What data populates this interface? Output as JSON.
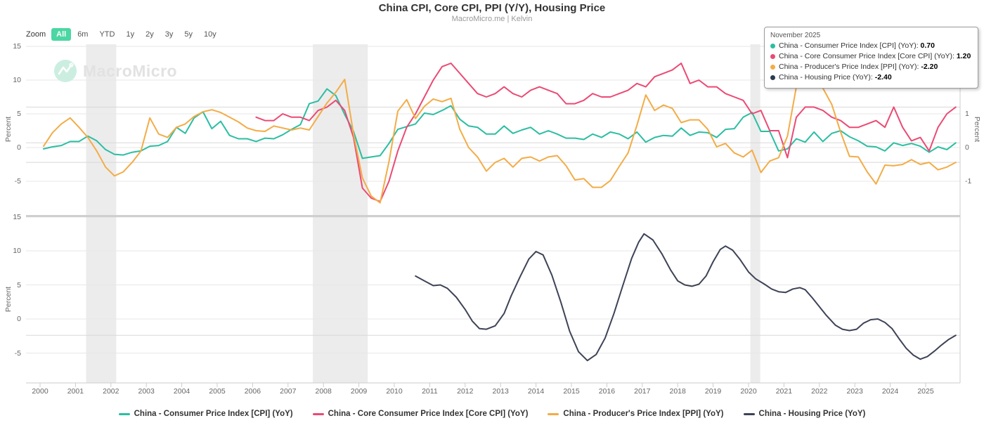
{
  "title": "China CPI, Core CPI, PPI (Y/Y), Housing Price",
  "subtitle": "MacroMicro.me | Kelvin",
  "watermark": "MacroMicro",
  "toolbar": {
    "zoom_label": "Zoom",
    "buttons": [
      "All",
      "6m",
      "YTD",
      "1y",
      "2y",
      "3y",
      "5y",
      "10y"
    ],
    "active": "All"
  },
  "axes": {
    "percent_label": "Percent"
  },
  "colors": {
    "cpi": "#2BBEA2",
    "core_cpi": "#EB4A74",
    "ppi": "#F3AC46",
    "housing": "#3D4356",
    "active_button": "#4CD6A4",
    "recession_band": "#ececec",
    "gridline": "#e7e7e7",
    "latest_value_line": "#d8d8d8"
  },
  "tooltip": {
    "date": "November 2025",
    "rows": [
      {
        "label": "China - Consumer Price Index [CPI] (YoY)",
        "value": "0.70",
        "color": "#2BBEA2"
      },
      {
        "label": "China - Core Consumer Price Index [Core CPI] (YoY)",
        "value": "1.20",
        "color": "#EB4A74"
      },
      {
        "label": "China - Producer's Price Index [PPI] (YoY)",
        "value": "-2.20",
        "color": "#F3AC46"
      },
      {
        "label": "China - Housing Price (YoY)",
        "value": "-2.40",
        "color": "#2e3a4e"
      }
    ]
  },
  "legend": [
    {
      "label": "China - Consumer Price Index [CPI] (YoY)",
      "color": "#2BBEA2"
    },
    {
      "label": "China - Core Consumer Price Index [Core CPI] (YoY)",
      "color": "#EB4A74"
    },
    {
      "label": "China - Producer's Price Index [PPI] (YoY)",
      "color": "#F3AC46"
    },
    {
      "label": "China - Housing Price (YoY)",
      "color": "#3D4356"
    }
  ],
  "chart_data": [
    {
      "type": "line",
      "panel": "top",
      "ylabel": "Percent",
      "ylabel_right": "Percent",
      "y_left": {
        "ticks": [
          15,
          10,
          5,
          0,
          -5
        ],
        "range": [
          -9.4,
          15
        ]
      },
      "y_right": {
        "ticks": [
          3,
          2,
          1,
          0,
          -1
        ],
        "range": [
          -1.88,
          3
        ]
      },
      "x_range": [
        1999.6,
        2026.0
      ],
      "bands": [
        {
          "from": 2001.3,
          "to": 2002.15
        },
        {
          "from": 2007.7,
          "to": 2009.25
        },
        {
          "from": 2020.05,
          "to": 2020.33
        }
      ],
      "latest_value_lines": [
        {
          "axis": "left",
          "value": 0.7
        },
        {
          "axis": "right",
          "value": 1.2
        },
        {
          "axis": "left",
          "value": -2.2
        }
      ],
      "series": [
        {
          "id": "cpi-line",
          "name": "China - Consumer Price Index [CPI] (YoY)",
          "color": "#2BBEA2",
          "axis": "left",
          "x_start": 2000.1,
          "x_step": 0.25,
          "y": [
            -0.2,
            0.1,
            0.3,
            0.9,
            0.9,
            1.7,
            1.0,
            -0.3,
            -1.0,
            -1.1,
            -0.7,
            -0.5,
            0.2,
            0.3,
            0.9,
            3.0,
            2.1,
            4.4,
            5.3,
            2.8,
            3.9,
            1.8,
            1.3,
            1.3,
            0.9,
            1.4,
            1.3,
            1.9,
            2.7,
            3.4,
            6.5,
            6.9,
            8.7,
            7.7,
            4.9,
            2.4,
            -1.6,
            -1.4,
            -1.2,
            0.6,
            2.7,
            3.1,
            3.5,
            5.1,
            4.9,
            5.5,
            6.2,
            4.2,
            3.2,
            3.0,
            2.0,
            2.0,
            3.2,
            2.1,
            2.6,
            3.0,
            2.0,
            2.5,
            2.0,
            1.4,
            1.4,
            1.2,
            2.0,
            1.5,
            2.3,
            2.0,
            1.3,
            2.3,
            0.8,
            1.5,
            1.8,
            1.7,
            2.9,
            1.8,
            2.3,
            2.2,
            1.5,
            2.7,
            2.8,
            4.5,
            5.2,
            2.4,
            2.4,
            -0.5,
            -0.2,
            1.3,
            0.8,
            2.3,
            0.9,
            2.1,
            2.5,
            1.6,
            1.0,
            0.2,
            0.1,
            -0.5,
            0.7,
            0.3,
            0.6,
            0.2,
            -0.7,
            0.1,
            -0.3,
            0.7
          ]
        },
        {
          "id": "core-cpi-line",
          "name": "China - Core Consumer Price Index [Core CPI] (YoY)",
          "color": "#EB4A74",
          "axis": "right",
          "x_start": 2006.1,
          "x_step": 0.25,
          "y": [
            0.9,
            0.8,
            0.8,
            1.0,
            0.9,
            0.9,
            0.8,
            1.1,
            1.2,
            1.4,
            1.1,
            0.3,
            -1.2,
            -1.5,
            -1.6,
            -1.0,
            -0.1,
            0.6,
            1.0,
            1.5,
            2.0,
            2.4,
            2.5,
            2.2,
            1.9,
            1.6,
            1.5,
            1.6,
            1.8,
            1.6,
            1.5,
            1.7,
            1.8,
            1.7,
            1.6,
            1.3,
            1.3,
            1.4,
            1.6,
            1.5,
            1.5,
            1.6,
            1.7,
            1.9,
            1.8,
            2.1,
            2.2,
            2.3,
            2.5,
            1.9,
            2.0,
            1.8,
            1.8,
            1.6,
            1.5,
            1.4,
            1.0,
            1.1,
            0.5,
            0.5,
            -0.3,
            0.9,
            1.2,
            1.2,
            1.1,
            0.9,
            0.8,
            0.6,
            0.6,
            0.7,
            0.8,
            0.6,
            1.2,
            0.6,
            0.2,
            0.3,
            -0.1,
            0.6,
            1.0,
            1.2
          ]
        },
        {
          "id": "ppi-line",
          "name": "China - Producer's Price Index [PPI] (YoY)",
          "color": "#F3AC46",
          "axis": "left",
          "x_start": 2000.1,
          "x_step": 0.25,
          "y": [
            0.2,
            2.2,
            3.5,
            4.4,
            3.0,
            1.5,
            -0.5,
            -2.9,
            -4.2,
            -3.6,
            -2.2,
            -0.5,
            4.4,
            2.0,
            1.5,
            3.0,
            3.5,
            4.6,
            5.3,
            5.6,
            5.2,
            4.5,
            3.8,
            2.9,
            2.5,
            2.4,
            3.2,
            2.9,
            2.6,
            2.9,
            2.6,
            4.6,
            6.6,
            8.2,
            10.1,
            2.0,
            -4.5,
            -7.2,
            -8.2,
            -2.1,
            5.4,
            7.1,
            4.3,
            6.1,
            7.2,
            6.8,
            7.3,
            2.7,
            0.0,
            -1.4,
            -3.5,
            -2.2,
            -1.6,
            -2.9,
            -1.6,
            -1.4,
            -2.0,
            -1.4,
            -1.2,
            -2.7,
            -4.8,
            -4.6,
            -5.9,
            -5.9,
            -4.9,
            -2.8,
            -0.8,
            3.3,
            7.8,
            5.5,
            6.3,
            5.8,
            3.7,
            4.1,
            4.1,
            2.7,
            0.1,
            0.6,
            -0.8,
            -1.4,
            -0.4,
            -3.7,
            -2.0,
            -1.5,
            1.7,
            9.0,
            9.5,
            13.0,
            8.8,
            6.4,
            2.3,
            -1.3,
            -1.4,
            -3.6,
            -5.4,
            -2.6,
            -2.7,
            -2.5,
            -1.8,
            -2.5,
            -2.2,
            -3.3,
            -2.9,
            -2.2
          ]
        }
      ]
    },
    {
      "type": "line",
      "panel": "bottom",
      "ylabel": "Percent",
      "y_left": {
        "ticks": [
          15,
          10,
          5,
          0,
          -5
        ],
        "range": [
          -9.4,
          15
        ]
      },
      "x_range": [
        1999.6,
        2026.0
      ],
      "x_axis": {
        "ticks": [
          2000,
          2001,
          2002,
          2003,
          2004,
          2005,
          2006,
          2007,
          2008,
          2009,
          2010,
          2011,
          2012,
          2013,
          2014,
          2015,
          2016,
          2017,
          2018,
          2019,
          2020,
          2021,
          2022,
          2023,
          2024,
          2025
        ]
      },
      "latest_value_lines": [
        {
          "axis": "left",
          "value": -2.4
        }
      ],
      "series": [
        {
          "id": "housing-price-line",
          "name": "China - Housing Price (YoY)",
          "color": "#3D4356",
          "axis": "left",
          "x": [
            2010.6,
            2010.85,
            2011.1,
            2011.3,
            2011.5,
            2011.75,
            2012.0,
            2012.2,
            2012.4,
            2012.6,
            2012.85,
            2013.1,
            2013.3,
            2013.55,
            2013.8,
            2014.0,
            2014.2,
            2014.45,
            2014.7,
            2014.95,
            2015.2,
            2015.45,
            2015.7,
            2015.95,
            2016.2,
            2016.45,
            2016.7,
            2016.9,
            2017.05,
            2017.3,
            2017.55,
            2017.8,
            2018.0,
            2018.2,
            2018.4,
            2018.6,
            2018.8,
            2019.0,
            2019.2,
            2019.35,
            2019.55,
            2019.75,
            2020.0,
            2020.2,
            2020.45,
            2020.65,
            2020.85,
            2021.05,
            2021.25,
            2021.45,
            2021.6,
            2021.8,
            2022.0,
            2022.2,
            2022.45,
            2022.65,
            2022.85,
            2023.05,
            2023.25,
            2023.45,
            2023.65,
            2023.85,
            2024.05,
            2024.25,
            2024.45,
            2024.65,
            2024.85,
            2025.05,
            2025.25,
            2025.45,
            2025.65,
            2025.85
          ],
          "y": [
            6.3,
            5.6,
            4.9,
            5.0,
            4.5,
            3.2,
            1.4,
            -0.3,
            -1.4,
            -1.5,
            -1.0,
            0.8,
            3.4,
            6.2,
            8.8,
            9.9,
            9.4,
            6.4,
            2.5,
            -1.8,
            -4.8,
            -6.1,
            -5.2,
            -2.8,
            0.8,
            4.9,
            8.9,
            11.3,
            12.5,
            11.6,
            9.6,
            7.2,
            5.6,
            5.0,
            4.8,
            5.1,
            6.3,
            8.4,
            10.2,
            10.7,
            10.1,
            8.8,
            6.9,
            5.9,
            5.1,
            4.4,
            4.0,
            3.9,
            4.4,
            4.6,
            4.3,
            3.1,
            1.8,
            0.5,
            -0.9,
            -1.5,
            -1.7,
            -1.5,
            -0.6,
            -0.1,
            0.0,
            -0.5,
            -1.4,
            -2.9,
            -4.3,
            -5.3,
            -5.9,
            -5.5,
            -4.7,
            -3.8,
            -3.0,
            -2.4
          ]
        }
      ]
    }
  ]
}
